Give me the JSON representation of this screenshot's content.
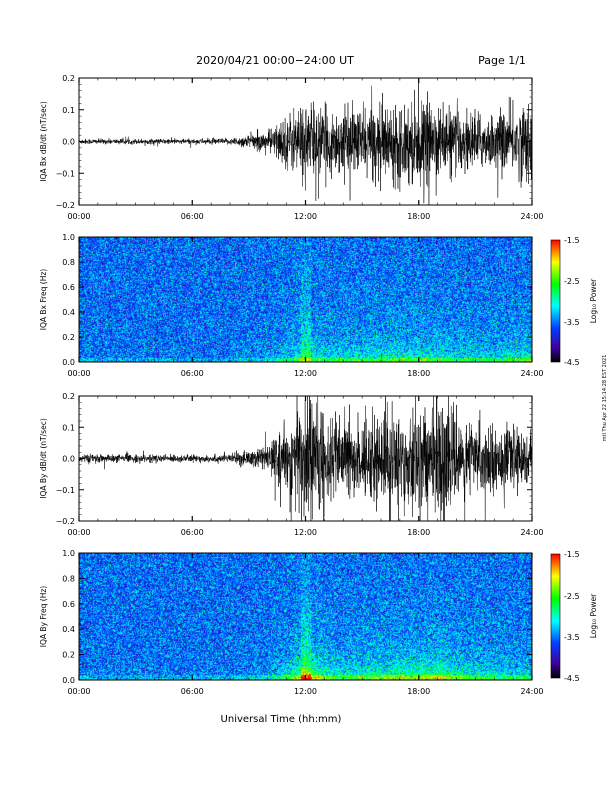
{
  "header": {
    "title": "2020/04/21  00:00−24:00 UT",
    "page": "Page 1/1"
  },
  "footer": {
    "xlabel": "Universal Time (hh:mm)"
  },
  "side_note": "mtl Thu Apr 22 15:14:28 EST 2021",
  "colorbar": {
    "label": "Log₁₀ Power",
    "ticks": [
      "-1.5",
      "-2.5",
      "-3.5",
      "-4.5"
    ],
    "stops": [
      "#ff0000",
      "#ffff00",
      "#00ff00",
      "#00ffff",
      "#0040ff",
      "#4000a0",
      "#000000"
    ]
  },
  "colors": {
    "trace": "#000000",
    "spectrogram_base": "#1e5fff"
  },
  "chart_data": [
    {
      "type": "line",
      "panel": "bx-ts",
      "ylabel": "IQA Bx dB/dt (nT/sec)",
      "xticks": [
        "00:00",
        "06:00",
        "12:00",
        "18:00",
        "24:00"
      ],
      "xlim": [
        0,
        24
      ],
      "ylim": [
        -0.2,
        0.2
      ],
      "yticks": [
        "0.2",
        "0.1",
        "0.0",
        "−0.1",
        "−0.2"
      ],
      "amplitude_envelope": {
        "x": [
          0,
          6,
          8,
          10,
          11,
          12,
          13,
          14,
          16,
          18,
          19,
          20,
          22,
          24
        ],
        "y": [
          0.005,
          0.005,
          0.006,
          0.02,
          0.05,
          0.08,
          0.06,
          0.06,
          0.07,
          0.08,
          0.07,
          0.06,
          0.05,
          0.08
        ]
      }
    },
    {
      "type": "heatmap",
      "panel": "bx-spec",
      "ylabel": "IQA Bx Freq (Hz)",
      "xticks": [
        "00:00",
        "06:00",
        "12:00",
        "18:00",
        "24:00"
      ],
      "xlim": [
        0,
        24
      ],
      "ylim": [
        0,
        1.0
      ],
      "yticks": [
        "1.0",
        "0.8",
        "0.6",
        "0.4",
        "0.2",
        "0.0"
      ],
      "zlim": [
        -4.5,
        -1.5
      ]
    },
    {
      "type": "line",
      "panel": "by-ts",
      "ylabel": "IQA By dB/dt (nT/sec)",
      "xticks": [
        "00:00",
        "06:00",
        "12:00",
        "18:00",
        "24:00"
      ],
      "xlim": [
        0,
        24
      ],
      "ylim": [
        -0.2,
        0.2
      ],
      "yticks": [
        "0.2",
        "0.1",
        "0.0",
        "−0.1",
        "−0.2"
      ],
      "amplitude_envelope": {
        "x": [
          0,
          6,
          8,
          10,
          11,
          12,
          13,
          14,
          16,
          18,
          19,
          20,
          22,
          24
        ],
        "y": [
          0.008,
          0.007,
          0.008,
          0.025,
          0.06,
          0.15,
          0.09,
          0.07,
          0.09,
          0.1,
          0.12,
          0.08,
          0.06,
          0.05
        ]
      }
    },
    {
      "type": "heatmap",
      "panel": "by-spec",
      "ylabel": "IQA By Freq (Hz)",
      "xticks": [
        "00:00",
        "06:00",
        "12:00",
        "18:00",
        "24:00"
      ],
      "xlim": [
        0,
        24
      ],
      "ylim": [
        0,
        1.0
      ],
      "yticks": [
        "1.0",
        "0.8",
        "0.6",
        "0.4",
        "0.2",
        "0.0"
      ],
      "zlim": [
        -4.5,
        -1.5
      ]
    }
  ]
}
